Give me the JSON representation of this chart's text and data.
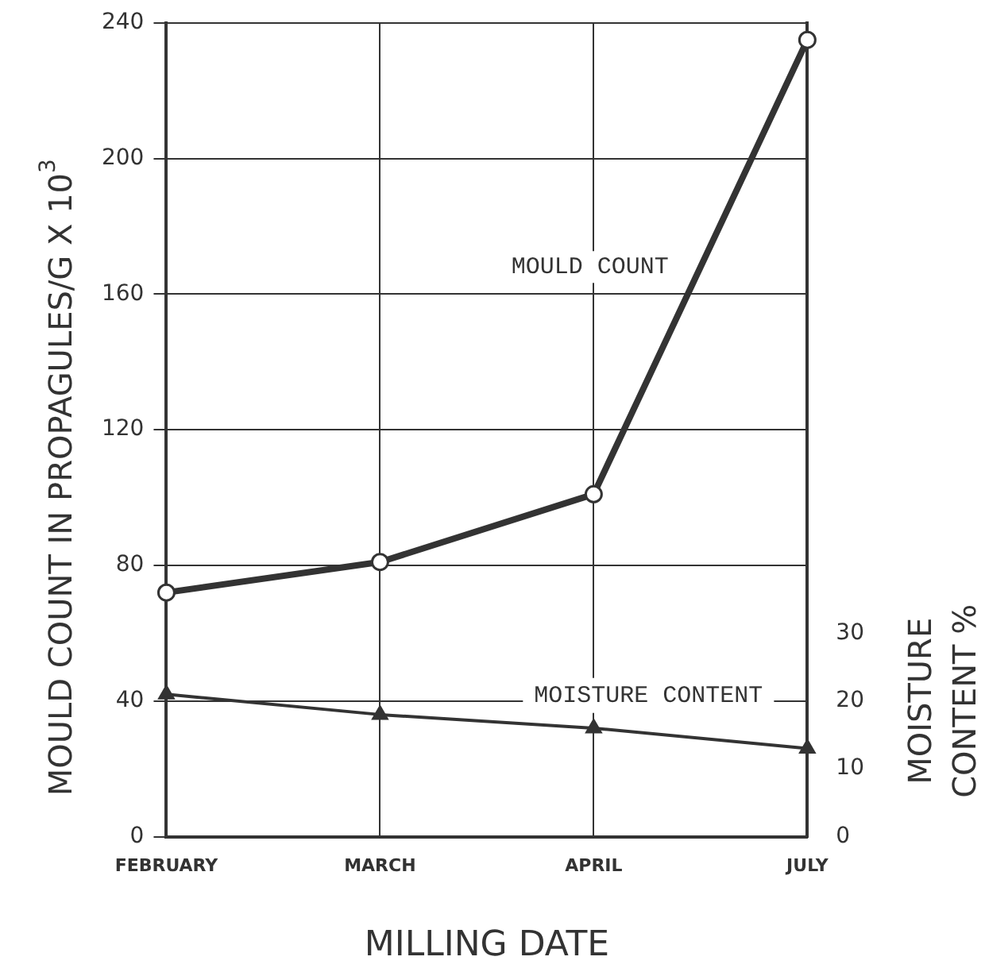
{
  "chart_data": {
    "type": "line",
    "xlabel": "MILLING DATE",
    "ylabel": "MOULD COUNT IN PROPAGULES/G X 10$^{3}$",
    "y2label": "MOISTURE CONTENT %",
    "categories": [
      "FEBRUARY",
      "MARCH",
      "APRIL",
      "JULY"
    ],
    "series": [
      {
        "name": "MOULD COUNT",
        "color": "#333333",
        "values": [
          72,
          81,
          101,
          235
        ],
        "marker": "circle"
      },
      {
        "name": "MOISTURE CONTENT",
        "color": "#333333",
        "values": [
          21,
          18,
          16,
          13
        ],
        "axis": "y2",
        "marker": "triangle"
      }
    ],
    "ylim": [
      0,
      240
    ],
    "yticks": [
      0,
      40,
      80,
      120,
      160,
      200,
      240
    ],
    "y2lim": [
      0,
      120
    ],
    "y2ticks": [
      0,
      10,
      20,
      30
    ],
    "grid": true,
    "legend": false,
    "line_style": "solid"
  }
}
